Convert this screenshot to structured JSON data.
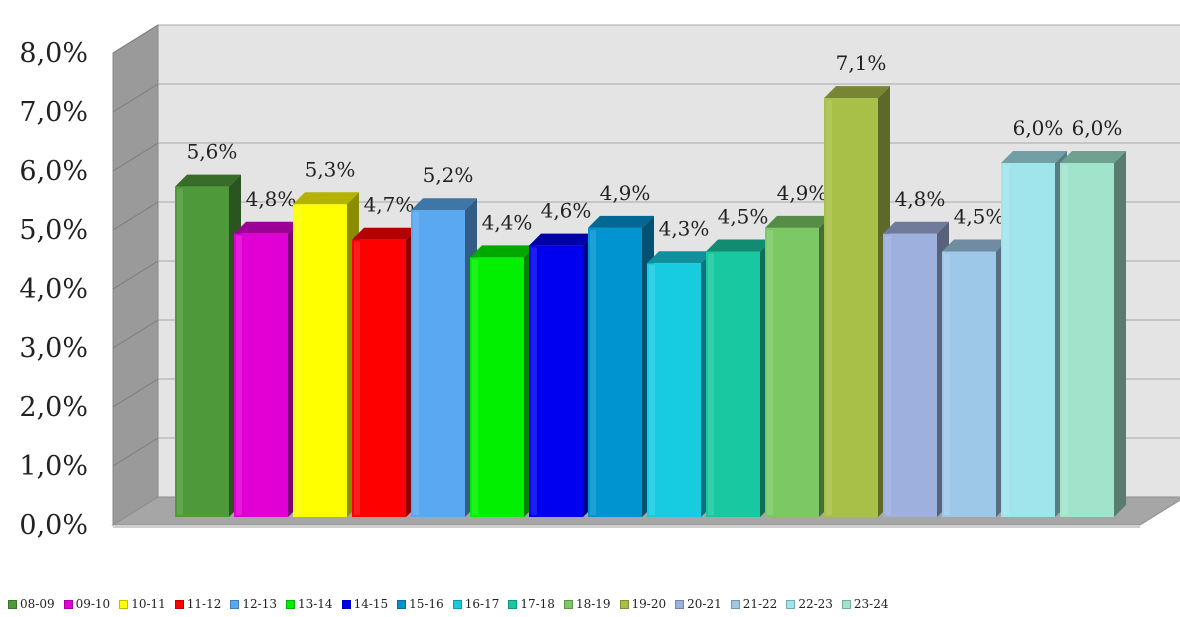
{
  "chart_data": {
    "type": "bar",
    "style": "3d-clustered-column",
    "categories": [
      "08-09",
      "09-10",
      "10-11",
      "11-12",
      "12-13",
      "13-14",
      "14-15",
      "15-16",
      "16-17",
      "17-18",
      "18-19",
      "19-20",
      "20-21",
      "21-22",
      "22-23",
      "23-24"
    ],
    "values": [
      5.6,
      4.8,
      5.3,
      4.7,
      5.2,
      4.4,
      4.6,
      4.9,
      4.3,
      4.5,
      4.9,
      7.1,
      4.8,
      4.5,
      6.0,
      6.0
    ],
    "data_labels": [
      "5,6%",
      "4,8%",
      "5,3%",
      "4,7%",
      "5,2%",
      "4,4%",
      "4,6%",
      "4,9%",
      "4,3%",
      "4,5%",
      "4,9%",
      "7,1%",
      "4,8%",
      "4,5%",
      "6,0%",
      "6,0%"
    ],
    "colors": [
      "#4e9a3a",
      "#e000d6",
      "#ffff00",
      "#ff0000",
      "#5aa8f0",
      "#00f000",
      "#0000f0",
      "#0094d0",
      "#18cce0",
      "#18c8a0",
      "#7cc864",
      "#a8bf48",
      "#9eb0de",
      "#9ec8e8",
      "#a0e4ec",
      "#a0e4cc"
    ],
    "y_ticks": [
      "0,0%",
      "1,0%",
      "2,0%",
      "3,0%",
      "4,0%",
      "5,0%",
      "6,0%",
      "7,0%",
      "8,0%"
    ],
    "ylim": [
      0,
      8
    ],
    "grid": true,
    "legend_position": "bottom",
    "title": "",
    "xlabel": "",
    "ylabel": ""
  }
}
